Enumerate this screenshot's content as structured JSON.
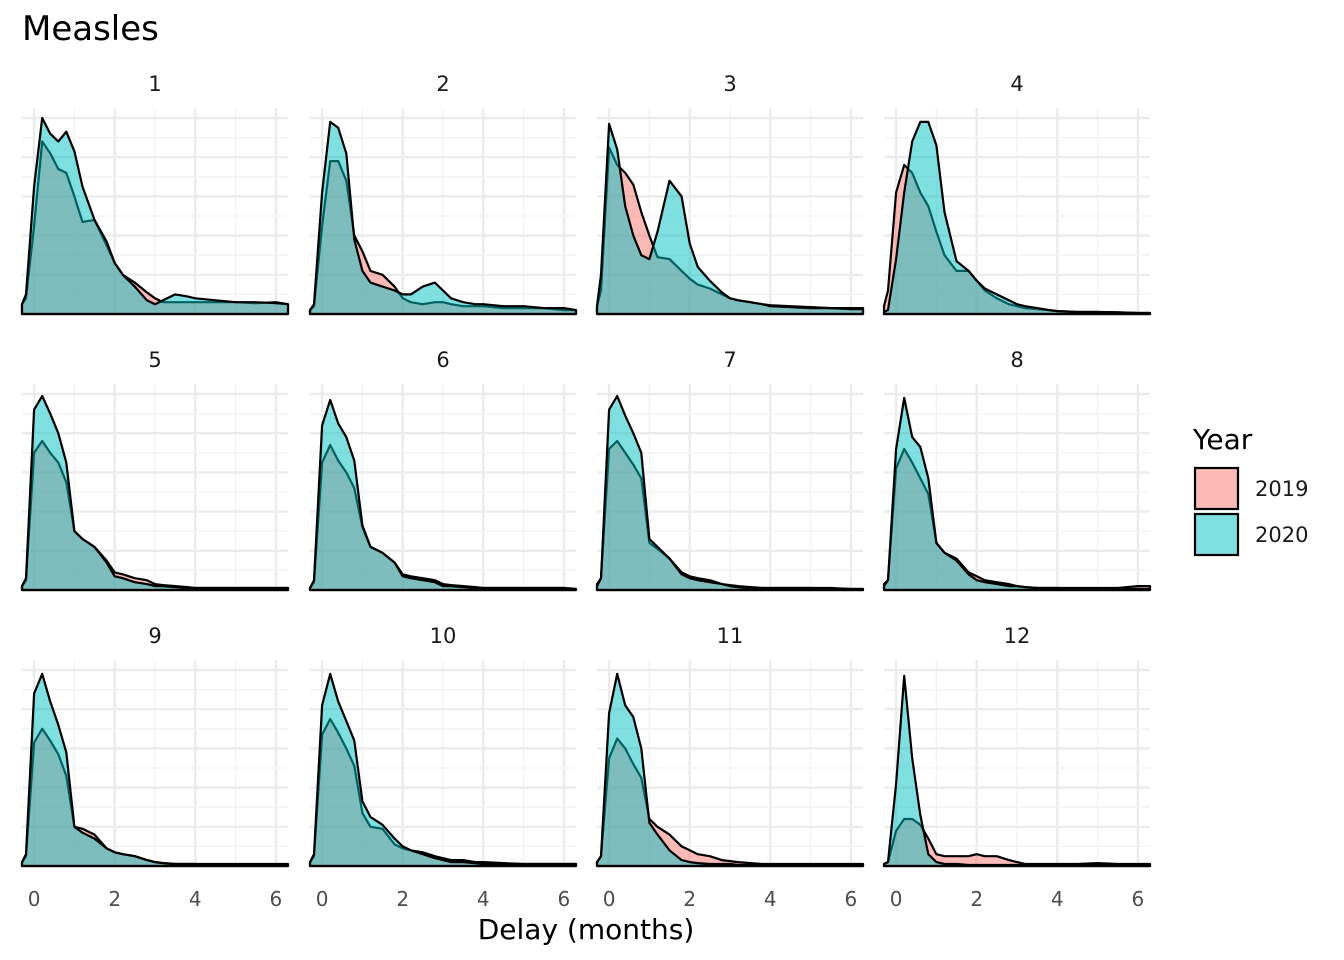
{
  "chart_data": {
    "type": "area",
    "title": "Measles",
    "xlabel": "Delay (months)",
    "ylabel": "",
    "xlim": [
      -0.3,
      6.3
    ],
    "xticks": [
      0,
      2,
      4,
      6
    ],
    "facets": [
      "1",
      "2",
      "3",
      "4",
      "5",
      "6",
      "7",
      "8",
      "9",
      "10",
      "11",
      "12"
    ],
    "facet_layout": {
      "rows": 3,
      "cols": 4
    },
    "legend": {
      "title": "Year",
      "position": "right"
    },
    "series": [
      {
        "name": "2019",
        "color": "#F8766D"
      },
      {
        "name": "2020",
        "color": "#00BFC4"
      }
    ],
    "x_grid": [
      -0.3,
      -0.2,
      0.0,
      0.2,
      0.4,
      0.6,
      0.8,
      1.0,
      1.2,
      1.5,
      1.8,
      2.0,
      2.2,
      2.5,
      2.8,
      3.0,
      3.2,
      3.5,
      3.8,
      4.0,
      4.5,
      5.0,
      5.5,
      6.0,
      6.3
    ],
    "panels": [
      {
        "facet": "1",
        "ymax": 1.0,
        "y2019": [
          0.05,
          0.08,
          0.45,
          0.88,
          0.82,
          0.74,
          0.72,
          0.6,
          0.47,
          0.48,
          0.35,
          0.26,
          0.2,
          0.16,
          0.11,
          0.08,
          0.06,
          0.06,
          0.06,
          0.06,
          0.06,
          0.06,
          0.055,
          0.06,
          0.05
        ],
        "y2020": [
          0.05,
          0.1,
          0.65,
          1.0,
          0.92,
          0.88,
          0.93,
          0.83,
          0.65,
          0.48,
          0.37,
          0.26,
          0.2,
          0.14,
          0.07,
          0.05,
          0.07,
          0.1,
          0.09,
          0.08,
          0.07,
          0.06,
          0.06,
          0.055,
          0.05
        ]
      },
      {
        "facet": "2",
        "ymax": 1.0,
        "y2019": [
          0.02,
          0.04,
          0.45,
          0.78,
          0.78,
          0.68,
          0.4,
          0.32,
          0.22,
          0.2,
          0.14,
          0.08,
          0.06,
          0.05,
          0.06,
          0.06,
          0.05,
          0.04,
          0.04,
          0.04,
          0.03,
          0.03,
          0.03,
          0.02,
          0.02
        ],
        "y2020": [
          0.02,
          0.05,
          0.62,
          0.98,
          0.95,
          0.82,
          0.38,
          0.22,
          0.16,
          0.14,
          0.12,
          0.1,
          0.1,
          0.14,
          0.16,
          0.12,
          0.08,
          0.06,
          0.05,
          0.05,
          0.04,
          0.04,
          0.03,
          0.03,
          0.02
        ]
      },
      {
        "facet": "3",
        "ymax": 1.0,
        "y2019": [
          0.04,
          0.12,
          0.85,
          0.76,
          0.72,
          0.66,
          0.52,
          0.4,
          0.29,
          0.28,
          0.22,
          0.18,
          0.15,
          0.13,
          0.1,
          0.08,
          0.07,
          0.06,
          0.05,
          0.045,
          0.04,
          0.035,
          0.03,
          0.03,
          0.03
        ],
        "y2020": [
          0.04,
          0.2,
          0.97,
          0.84,
          0.55,
          0.4,
          0.3,
          0.28,
          0.42,
          0.68,
          0.6,
          0.36,
          0.24,
          0.17,
          0.11,
          0.08,
          0.07,
          0.06,
          0.05,
          0.04,
          0.035,
          0.03,
          0.03,
          0.025,
          0.025
        ]
      },
      {
        "facet": "4",
        "ymax": 1.0,
        "y2019": [
          0.04,
          0.12,
          0.62,
          0.76,
          0.72,
          0.62,
          0.55,
          0.42,
          0.3,
          0.22,
          0.22,
          0.17,
          0.12,
          0.08,
          0.05,
          0.04,
          0.03,
          0.025,
          0.02,
          0.015,
          0.01,
          0.01,
          0.008,
          0.005,
          0.005
        ],
        "y2020": [
          0.01,
          0.02,
          0.28,
          0.62,
          0.88,
          0.98,
          0.98,
          0.86,
          0.52,
          0.27,
          0.22,
          0.17,
          0.13,
          0.1,
          0.07,
          0.05,
          0.04,
          0.03,
          0.02,
          0.015,
          0.01,
          0.01,
          0.008,
          0.005,
          0.005
        ]
      },
      {
        "facet": "5",
        "ymax": 1.0,
        "y2019": [
          0.02,
          0.05,
          0.7,
          0.76,
          0.7,
          0.65,
          0.55,
          0.3,
          0.26,
          0.22,
          0.15,
          0.09,
          0.08,
          0.06,
          0.05,
          0.03,
          0.025,
          0.02,
          0.015,
          0.01,
          0.01,
          0.01,
          0.01,
          0.01,
          0.01
        ],
        "y2020": [
          0.02,
          0.06,
          0.92,
          0.99,
          0.9,
          0.8,
          0.65,
          0.3,
          0.26,
          0.22,
          0.14,
          0.07,
          0.06,
          0.04,
          0.03,
          0.02,
          0.02,
          0.015,
          0.01,
          0.01,
          0.01,
          0.01,
          0.01,
          0.01,
          0.01
        ]
      },
      {
        "facet": "6",
        "ymax": 1.0,
        "y2019": [
          0.01,
          0.04,
          0.65,
          0.74,
          0.66,
          0.6,
          0.52,
          0.32,
          0.22,
          0.19,
          0.14,
          0.08,
          0.07,
          0.06,
          0.05,
          0.03,
          0.025,
          0.02,
          0.015,
          0.01,
          0.01,
          0.01,
          0.01,
          0.01,
          0.005
        ],
        "y2020": [
          0.01,
          0.05,
          0.84,
          0.97,
          0.85,
          0.78,
          0.66,
          0.33,
          0.22,
          0.19,
          0.14,
          0.07,
          0.06,
          0.05,
          0.04,
          0.02,
          0.02,
          0.015,
          0.01,
          0.01,
          0.01,
          0.01,
          0.01,
          0.01,
          0.005
        ]
      },
      {
        "facet": "7",
        "ymax": 1.0,
        "y2019": [
          0.03,
          0.06,
          0.72,
          0.76,
          0.7,
          0.64,
          0.57,
          0.24,
          0.21,
          0.16,
          0.09,
          0.07,
          0.06,
          0.05,
          0.03,
          0.025,
          0.02,
          0.015,
          0.01,
          0.01,
          0.01,
          0.01,
          0.01,
          0.005,
          0.005
        ],
        "y2020": [
          0.02,
          0.06,
          0.92,
          0.99,
          0.89,
          0.8,
          0.7,
          0.26,
          0.22,
          0.16,
          0.08,
          0.06,
          0.05,
          0.04,
          0.03,
          0.02,
          0.015,
          0.01,
          0.01,
          0.01,
          0.01,
          0.01,
          0.005,
          0.005,
          0.005
        ]
      },
      {
        "facet": "8",
        "ymax": 1.0,
        "y2019": [
          0.03,
          0.05,
          0.62,
          0.72,
          0.65,
          0.57,
          0.49,
          0.24,
          0.19,
          0.16,
          0.09,
          0.07,
          0.05,
          0.04,
          0.03,
          0.02,
          0.015,
          0.01,
          0.01,
          0.01,
          0.01,
          0.01,
          0.01,
          0.02,
          0.02
        ],
        "y2020": [
          0.02,
          0.05,
          0.72,
          0.98,
          0.78,
          0.73,
          0.57,
          0.24,
          0.19,
          0.15,
          0.08,
          0.05,
          0.04,
          0.03,
          0.02,
          0.02,
          0.015,
          0.01,
          0.01,
          0.01,
          0.005,
          0.005,
          0.005,
          0.005,
          0.005
        ]
      },
      {
        "facet": "9",
        "ymax": 1.0,
        "y2019": [
          0.02,
          0.05,
          0.63,
          0.7,
          0.64,
          0.57,
          0.46,
          0.2,
          0.19,
          0.16,
          0.09,
          0.07,
          0.06,
          0.05,
          0.03,
          0.02,
          0.015,
          0.01,
          0.01,
          0.01,
          0.01,
          0.01,
          0.01,
          0.01,
          0.01
        ],
        "y2020": [
          0.02,
          0.06,
          0.88,
          0.98,
          0.84,
          0.72,
          0.58,
          0.2,
          0.17,
          0.14,
          0.09,
          0.07,
          0.06,
          0.05,
          0.03,
          0.02,
          0.015,
          0.01,
          0.01,
          0.01,
          0.005,
          0.005,
          0.005,
          0.005,
          0.005
        ]
      },
      {
        "facet": "10",
        "ymax": 1.0,
        "y2019": [
          0.02,
          0.05,
          0.67,
          0.75,
          0.68,
          0.6,
          0.51,
          0.27,
          0.2,
          0.19,
          0.11,
          0.09,
          0.08,
          0.07,
          0.05,
          0.04,
          0.03,
          0.03,
          0.02,
          0.02,
          0.015,
          0.01,
          0.01,
          0.01,
          0.01
        ],
        "y2020": [
          0.02,
          0.06,
          0.82,
          0.98,
          0.84,
          0.74,
          0.64,
          0.33,
          0.25,
          0.21,
          0.14,
          0.1,
          0.08,
          0.06,
          0.04,
          0.03,
          0.02,
          0.02,
          0.015,
          0.01,
          0.01,
          0.01,
          0.01,
          0.01,
          0.01
        ]
      },
      {
        "facet": "11",
        "ymax": 1.0,
        "y2019": [
          0.02,
          0.05,
          0.55,
          0.65,
          0.6,
          0.52,
          0.45,
          0.24,
          0.2,
          0.16,
          0.1,
          0.08,
          0.06,
          0.05,
          0.03,
          0.025,
          0.02,
          0.015,
          0.01,
          0.01,
          0.01,
          0.01,
          0.01,
          0.01,
          0.01
        ],
        "y2020": [
          0.02,
          0.05,
          0.78,
          0.98,
          0.82,
          0.76,
          0.6,
          0.22,
          0.16,
          0.08,
          0.03,
          0.02,
          0.015,
          0.01,
          0.01,
          0.01,
          0.005,
          0.005,
          0.005,
          0.005,
          0.005,
          0.005,
          0.005,
          0.005,
          0.005
        ]
      },
      {
        "facet": "12",
        "ymax": 1.0,
        "y2019": [
          0.01,
          0.02,
          0.18,
          0.24,
          0.24,
          0.21,
          0.14,
          0.06,
          0.05,
          0.05,
          0.05,
          0.06,
          0.05,
          0.05,
          0.03,
          0.02,
          0.01,
          0.01,
          0.01,
          0.01,
          0.01,
          0.015,
          0.01,
          0.01,
          0.01
        ],
        "y2020": [
          0.01,
          0.02,
          0.42,
          0.97,
          0.55,
          0.26,
          0.06,
          0.02,
          0.01,
          0.01,
          0.005,
          0.005,
          0.005,
          0.005,
          0.005,
          0.005,
          0.005,
          0.005,
          0.005,
          0.005,
          0.005,
          0.005,
          0.005,
          0.005,
          0.005
        ]
      }
    ]
  }
}
